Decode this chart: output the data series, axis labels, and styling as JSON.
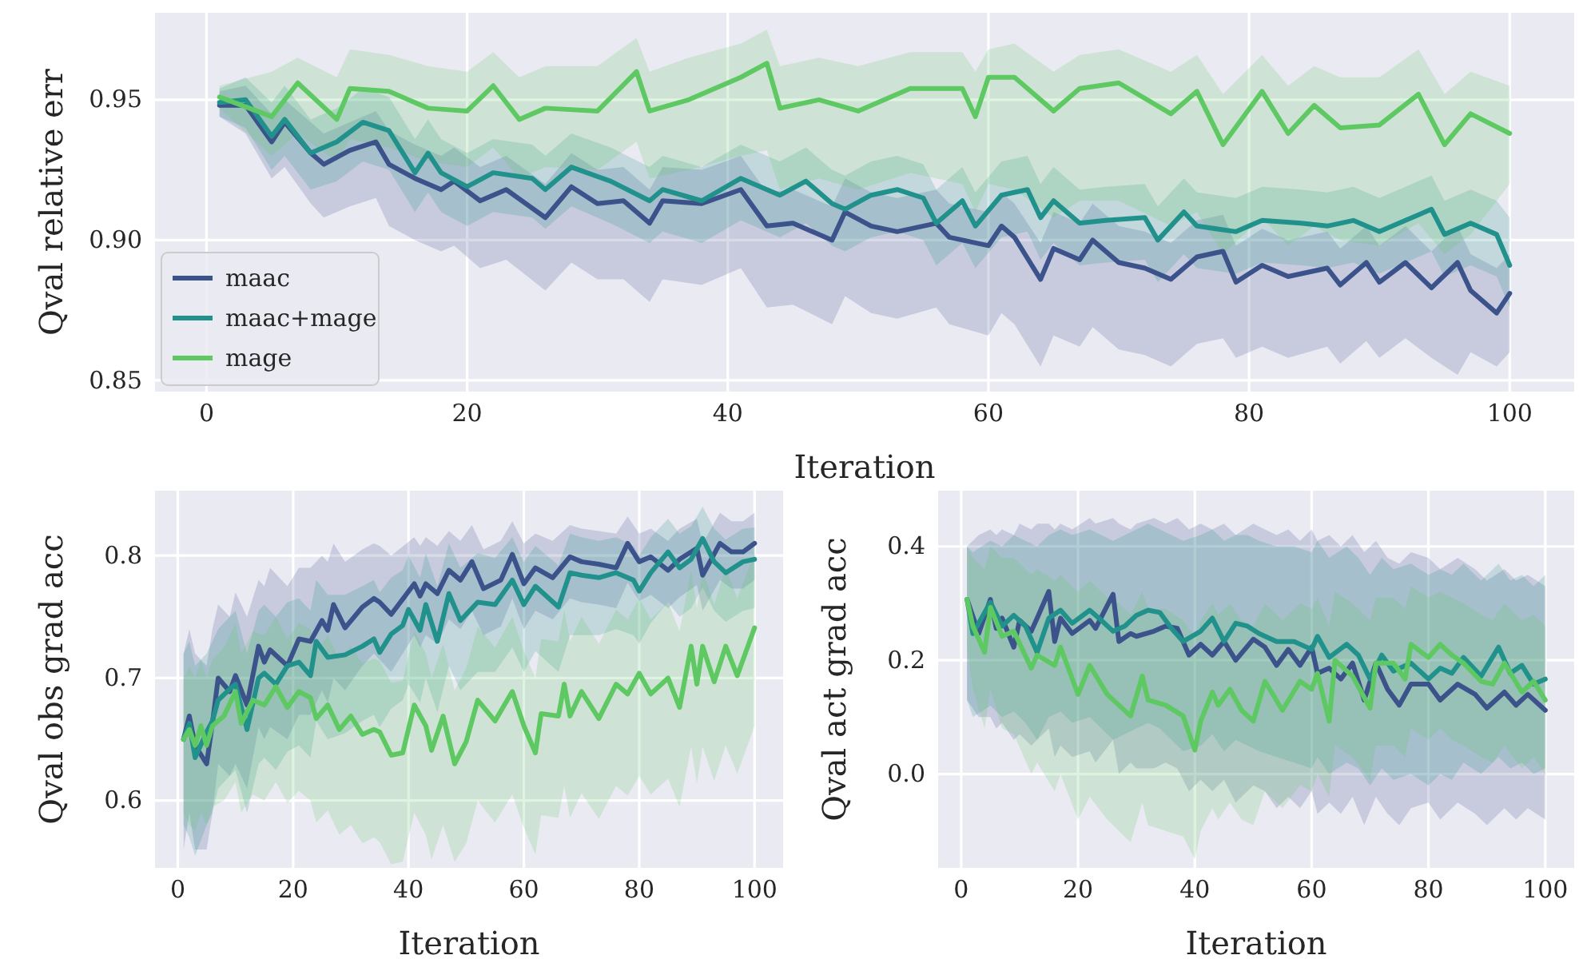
{
  "chart_data": [
    {
      "type": "line",
      "xlabel": "Iteration",
      "ylabel": "Qval relative err",
      "xlim": [
        -3.95,
        104.95
      ],
      "xticks": [
        0,
        20,
        40,
        60,
        80,
        100
      ],
      "ylim": [
        0.846,
        0.981
      ],
      "yticks": [
        {
          "value": 0.85,
          "label": "0.85"
        },
        {
          "value": 0.9,
          "label": "0.90"
        },
        {
          "value": 0.95,
          "label": "0.95"
        }
      ],
      "grid": true,
      "legend": "bottom left",
      "series": [
        {
          "name": "maac",
          "color": "#3b528b",
          "x": [
            1,
            3,
            5,
            6,
            8,
            9,
            11,
            13,
            14,
            16,
            18,
            19,
            21,
            23,
            26,
            28,
            30,
            32,
            34,
            35,
            38,
            41,
            43,
            45,
            48,
            49,
            51,
            53,
            56,
            57,
            60,
            61,
            62,
            64,
            65,
            67,
            68,
            70,
            72,
            74,
            76,
            78,
            79,
            81,
            83,
            86,
            87,
            89,
            90,
            92,
            94,
            96,
            97,
            99,
            100
          ],
          "values": [
            0.948,
            0.948,
            0.935,
            0.942,
            0.931,
            0.927,
            0.932,
            0.935,
            0.927,
            0.922,
            0.918,
            0.921,
            0.914,
            0.918,
            0.908,
            0.919,
            0.913,
            0.914,
            0.906,
            0.914,
            0.913,
            0.918,
            0.905,
            0.906,
            0.9,
            0.91,
            0.905,
            0.903,
            0.906,
            0.901,
            0.898,
            0.905,
            0.901,
            0.886,
            0.897,
            0.893,
            0.9,
            0.892,
            0.89,
            0.886,
            0.894,
            0.896,
            0.885,
            0.891,
            0.887,
            0.89,
            0.884,
            0.892,
            0.885,
            0.892,
            0.883,
            0.892,
            0.882,
            0.874,
            0.881
          ],
          "lower": [
            0.944,
            0.938,
            0.922,
            0.926,
            0.913,
            0.908,
            0.912,
            0.915,
            0.905,
            0.9,
            0.896,
            0.898,
            0.89,
            0.893,
            0.882,
            0.892,
            0.886,
            0.886,
            0.878,
            0.886,
            0.884,
            0.89,
            0.876,
            0.877,
            0.87,
            0.88,
            0.874,
            0.872,
            0.876,
            0.87,
            0.866,
            0.874,
            0.87,
            0.855,
            0.866,
            0.862,
            0.869,
            0.861,
            0.859,
            0.855,
            0.863,
            0.865,
            0.858,
            0.862,
            0.858,
            0.862,
            0.856,
            0.864,
            0.858,
            0.865,
            0.858,
            0.852,
            0.86,
            0.855,
            0.86
          ],
          "upper": [
            0.953,
            0.955,
            0.945,
            0.95,
            0.942,
            0.938,
            0.942,
            0.946,
            0.939,
            0.934,
            0.93,
            0.933,
            0.926,
            0.93,
            0.92,
            0.931,
            0.925,
            0.926,
            0.918,
            0.926,
            0.925,
            0.93,
            0.917,
            0.918,
            0.912,
            0.922,
            0.917,
            0.915,
            0.918,
            0.913,
            0.91,
            0.917,
            0.913,
            0.899,
            0.91,
            0.906,
            0.913,
            0.905,
            0.903,
            0.899,
            0.907,
            0.909,
            0.898,
            0.904,
            0.9,
            0.903,
            0.897,
            0.905,
            0.898,
            0.905,
            0.896,
            0.905,
            0.895,
            0.89,
            0.895
          ]
        },
        {
          "name": "maac+mage",
          "color": "#21918c",
          "x": [
            1,
            3,
            5,
            6,
            8,
            10,
            12,
            14,
            16,
            17,
            18,
            20,
            22,
            25,
            26,
            28,
            31,
            34,
            35,
            38,
            41,
            44,
            46,
            48,
            49,
            51,
            53,
            55,
            56,
            58,
            59,
            61,
            63,
            64,
            65,
            67,
            69,
            72,
            73,
            75,
            76,
            79,
            81,
            84,
            86,
            88,
            90,
            92,
            94,
            95,
            97,
            99,
            100
          ],
          "values": [
            0.949,
            0.95,
            0.937,
            0.943,
            0.931,
            0.935,
            0.942,
            0.939,
            0.924,
            0.931,
            0.924,
            0.919,
            0.924,
            0.922,
            0.918,
            0.926,
            0.921,
            0.914,
            0.918,
            0.914,
            0.922,
            0.916,
            0.921,
            0.913,
            0.911,
            0.916,
            0.918,
            0.915,
            0.906,
            0.914,
            0.905,
            0.916,
            0.918,
            0.908,
            0.914,
            0.906,
            0.907,
            0.908,
            0.9,
            0.91,
            0.905,
            0.903,
            0.907,
            0.906,
            0.905,
            0.907,
            0.903,
            0.907,
            0.911,
            0.902,
            0.906,
            0.902,
            0.891
          ],
          "lower": [
            0.944,
            0.94,
            0.925,
            0.93,
            0.918,
            0.921,
            0.928,
            0.925,
            0.91,
            0.917,
            0.91,
            0.905,
            0.91,
            0.908,
            0.904,
            0.912,
            0.906,
            0.899,
            0.903,
            0.899,
            0.907,
            0.901,
            0.906,
            0.898,
            0.896,
            0.901,
            0.903,
            0.9,
            0.891,
            0.899,
            0.89,
            0.901,
            0.903,
            0.893,
            0.899,
            0.891,
            0.892,
            0.893,
            0.885,
            0.895,
            0.89,
            0.888,
            0.892,
            0.891,
            0.89,
            0.892,
            0.888,
            0.892,
            0.896,
            0.887,
            0.891,
            0.887,
            0.876
          ],
          "upper": [
            0.954,
            0.958,
            0.949,
            0.955,
            0.943,
            0.947,
            0.954,
            0.951,
            0.936,
            0.943,
            0.936,
            0.931,
            0.936,
            0.934,
            0.93,
            0.938,
            0.933,
            0.926,
            0.93,
            0.926,
            0.934,
            0.928,
            0.933,
            0.925,
            0.923,
            0.928,
            0.93,
            0.927,
            0.918,
            0.926,
            0.917,
            0.928,
            0.93,
            0.92,
            0.926,
            0.918,
            0.919,
            0.92,
            0.912,
            0.922,
            0.917,
            0.915,
            0.919,
            0.918,
            0.917,
            0.919,
            0.915,
            0.919,
            0.923,
            0.914,
            0.918,
            0.914,
            0.908
          ]
        },
        {
          "name": "mage",
          "color": "#5ec962",
          "x": [
            1,
            5,
            7,
            10,
            11,
            14,
            17,
            20,
            22,
            24,
            26,
            30,
            33,
            34,
            37,
            41,
            43,
            44,
            47,
            50,
            54,
            58,
            59,
            60,
            62,
            65,
            67,
            70,
            74,
            76,
            78,
            81,
            83,
            85,
            87,
            90,
            93,
            95,
            97,
            100
          ],
          "values": [
            0.951,
            0.944,
            0.956,
            0.943,
            0.954,
            0.953,
            0.947,
            0.946,
            0.955,
            0.943,
            0.947,
            0.946,
            0.96,
            0.946,
            0.95,
            0.958,
            0.963,
            0.947,
            0.95,
            0.946,
            0.954,
            0.954,
            0.944,
            0.958,
            0.958,
            0.946,
            0.954,
            0.956,
            0.945,
            0.953,
            0.934,
            0.953,
            0.938,
            0.948,
            0.94,
            0.941,
            0.952,
            0.934,
            0.945,
            0.938
          ],
          "lower": [
            0.947,
            0.93,
            0.938,
            0.928,
            0.936,
            0.933,
            0.928,
            0.926,
            0.933,
            0.922,
            0.926,
            0.925,
            0.935,
            0.922,
            0.925,
            0.93,
            0.932,
            0.918,
            0.922,
            0.918,
            0.924,
            0.92,
            0.91,
            0.92,
            0.918,
            0.908,
            0.914,
            0.914,
            0.905,
            0.91,
            0.895,
            0.908,
            0.898,
            0.905,
            0.9,
            0.898,
            0.906,
            0.895,
            0.902,
            0.92
          ],
          "upper": [
            0.955,
            0.96,
            0.965,
            0.958,
            0.968,
            0.966,
            0.962,
            0.96,
            0.967,
            0.958,
            0.962,
            0.962,
            0.972,
            0.96,
            0.965,
            0.97,
            0.975,
            0.962,
            0.965,
            0.962,
            0.967,
            0.967,
            0.96,
            0.968,
            0.97,
            0.96,
            0.966,
            0.968,
            0.96,
            0.966,
            0.952,
            0.966,
            0.955,
            0.962,
            0.958,
            0.958,
            0.968,
            0.952,
            0.96,
            0.955
          ]
        }
      ]
    },
    {
      "type": "line",
      "xlabel": "Iteration",
      "ylabel": "Qval obs grad acc",
      "xlim": [
        -3.95,
        104.95
      ],
      "xticks": [
        0,
        20,
        40,
        60,
        80,
        100
      ],
      "ylim": [
        0.545,
        0.853
      ],
      "yticks": [
        0.6,
        0.7,
        0.8
      ],
      "grid": true,
      "series": [
        {
          "color": "#3b528b",
          "x": [
            1,
            2,
            3,
            5,
            6,
            7,
            9,
            10,
            12,
            14,
            15,
            16,
            19,
            21,
            23,
            25,
            26,
            27,
            29,
            32,
            34,
            35,
            37,
            41,
            42,
            43,
            45,
            47,
            49,
            51,
            53,
            56,
            58,
            60,
            62,
            65,
            68,
            70,
            73,
            76,
            78,
            80,
            82,
            85,
            87,
            90,
            91,
            94,
            96,
            98,
            100
          ],
          "values": [
            0.65,
            0.669,
            0.645,
            0.63,
            0.663,
            0.7,
            0.689,
            0.702,
            0.678,
            0.726,
            0.713,
            0.723,
            0.71,
            0.732,
            0.73,
            0.747,
            0.739,
            0.76,
            0.741,
            0.758,
            0.765,
            0.762,
            0.752,
            0.777,
            0.767,
            0.777,
            0.769,
            0.788,
            0.78,
            0.795,
            0.773,
            0.78,
            0.801,
            0.777,
            0.79,
            0.782,
            0.799,
            0.795,
            0.793,
            0.79,
            0.81,
            0.795,
            0.799,
            0.788,
            0.797,
            0.806,
            0.784,
            0.81,
            0.803,
            0.803,
            0.81
          ],
          "upper": [
            0.72,
            0.74,
            0.72,
            0.71,
            0.74,
            0.76,
            0.75,
            0.77,
            0.75,
            0.78,
            0.775,
            0.79,
            0.775,
            0.79,
            0.79,
            0.8,
            0.795,
            0.81,
            0.795,
            0.805,
            0.81,
            0.808,
            0.8,
            0.815,
            0.808,
            0.815,
            0.808,
            0.82,
            0.812,
            0.825,
            0.805,
            0.812,
            0.828,
            0.81,
            0.818,
            0.812,
            0.825,
            0.822,
            0.82,
            0.818,
            0.832,
            0.818,
            0.822,
            0.812,
            0.822,
            0.83,
            0.81,
            0.835,
            0.828,
            0.828,
            0.835
          ],
          "lower": [
            0.56,
            0.59,
            0.56,
            0.56,
            0.59,
            0.63,
            0.62,
            0.63,
            0.61,
            0.66,
            0.65,
            0.66,
            0.65,
            0.67,
            0.67,
            0.69,
            0.68,
            0.7,
            0.69,
            0.71,
            0.72,
            0.715,
            0.705,
            0.735,
            0.725,
            0.735,
            0.728,
            0.748,
            0.74,
            0.755,
            0.735,
            0.742,
            0.765,
            0.74,
            0.755,
            0.748,
            0.765,
            0.762,
            0.76,
            0.757,
            0.778,
            0.763,
            0.768,
            0.757,
            0.766,
            0.776,
            0.755,
            0.78,
            0.773,
            0.773,
            0.78
          ]
        },
        {
          "color": "#21918c",
          "x": [
            1,
            2,
            3,
            5,
            6,
            7,
            9,
            10,
            12,
            14,
            15,
            17,
            19,
            21,
            23,
            24,
            26,
            29,
            32,
            34,
            35,
            37,
            39,
            40,
            42,
            43,
            45,
            47,
            49,
            52,
            55,
            58,
            60,
            62,
            66,
            68,
            70,
            73,
            76,
            79,
            80,
            82,
            85,
            87,
            89,
            91,
            93,
            95,
            98,
            100
          ],
          "values": [
            0.65,
            0.663,
            0.635,
            0.656,
            0.665,
            0.682,
            0.691,
            0.695,
            0.658,
            0.7,
            0.704,
            0.695,
            0.71,
            0.713,
            0.702,
            0.73,
            0.717,
            0.719,
            0.726,
            0.732,
            0.721,
            0.736,
            0.743,
            0.756,
            0.739,
            0.76,
            0.73,
            0.769,
            0.747,
            0.762,
            0.76,
            0.78,
            0.76,
            0.775,
            0.758,
            0.786,
            0.784,
            0.782,
            0.786,
            0.78,
            0.771,
            0.786,
            0.803,
            0.79,
            0.797,
            0.814,
            0.795,
            0.786,
            0.795,
            0.797
          ],
          "upper": [
            0.72,
            0.73,
            0.71,
            0.72,
            0.73,
            0.74,
            0.75,
            0.755,
            0.72,
            0.755,
            0.76,
            0.75,
            0.762,
            0.765,
            0.755,
            0.78,
            0.768,
            0.768,
            0.775,
            0.78,
            0.77,
            0.782,
            0.788,
            0.8,
            0.782,
            0.802,
            0.775,
            0.81,
            0.79,
            0.802,
            0.798,
            0.815,
            0.795,
            0.808,
            0.792,
            0.818,
            0.815,
            0.812,
            0.815,
            0.808,
            0.8,
            0.815,
            0.83,
            0.818,
            0.824,
            0.84,
            0.822,
            0.813,
            0.822,
            0.823
          ],
          "lower": [
            0.58,
            0.57,
            0.555,
            0.58,
            0.59,
            0.61,
            0.62,
            0.625,
            0.59,
            0.63,
            0.635,
            0.625,
            0.64,
            0.645,
            0.635,
            0.665,
            0.65,
            0.655,
            0.665,
            0.67,
            0.66,
            0.675,
            0.682,
            0.695,
            0.68,
            0.7,
            0.672,
            0.71,
            0.69,
            0.705,
            0.705,
            0.725,
            0.705,
            0.722,
            0.705,
            0.735,
            0.735,
            0.735,
            0.74,
            0.735,
            0.728,
            0.745,
            0.762,
            0.75,
            0.757,
            0.774,
            0.755,
            0.746,
            0.755,
            0.757
          ]
        },
        {
          "color": "#5ec962",
          "x": [
            1,
            2,
            3,
            4,
            5,
            6,
            8,
            10,
            11,
            13,
            15,
            17,
            19,
            21,
            23,
            24,
            26,
            28,
            30,
            32,
            34,
            35,
            37,
            39,
            41,
            43,
            44,
            46,
            48,
            50,
            52,
            55,
            58,
            60,
            62,
            63,
            66,
            67,
            68,
            70,
            73,
            76,
            78,
            80,
            82,
            85,
            87,
            89,
            90,
            91,
            93,
            95,
            97,
            99,
            100
          ],
          "values": [
            0.65,
            0.658,
            0.645,
            0.661,
            0.645,
            0.661,
            0.669,
            0.689,
            0.663,
            0.682,
            0.678,
            0.693,
            0.676,
            0.689,
            0.684,
            0.667,
            0.678,
            0.658,
            0.669,
            0.654,
            0.658,
            0.656,
            0.637,
            0.639,
            0.678,
            0.661,
            0.641,
            0.669,
            0.63,
            0.648,
            0.682,
            0.665,
            0.689,
            0.661,
            0.639,
            0.671,
            0.669,
            0.695,
            0.669,
            0.689,
            0.667,
            0.695,
            0.687,
            0.704,
            0.687,
            0.7,
            0.676,
            0.726,
            0.695,
            0.726,
            0.697,
            0.726,
            0.702,
            0.728,
            0.741
          ],
          "upper": [
            0.7,
            0.71,
            0.7,
            0.715,
            0.7,
            0.715,
            0.725,
            0.745,
            0.72,
            0.738,
            0.735,
            0.75,
            0.732,
            0.745,
            0.74,
            0.722,
            0.735,
            0.715,
            0.726,
            0.712,
            0.716,
            0.714,
            0.696,
            0.698,
            0.738,
            0.72,
            0.7,
            0.728,
            0.69,
            0.708,
            0.742,
            0.725,
            0.75,
            0.722,
            0.7,
            0.732,
            0.73,
            0.756,
            0.73,
            0.75,
            0.728,
            0.756,
            0.748,
            0.765,
            0.748,
            0.762,
            0.738,
            0.788,
            0.757,
            0.788,
            0.76,
            0.79,
            0.765,
            0.79,
            0.8
          ],
          "lower": [
            0.59,
            0.58,
            0.575,
            0.59,
            0.58,
            0.595,
            0.6,
            0.615,
            0.59,
            0.605,
            0.6,
            0.615,
            0.598,
            0.608,
            0.6,
            0.582,
            0.592,
            0.572,
            0.58,
            0.565,
            0.57,
            0.566,
            0.548,
            0.55,
            0.59,
            0.572,
            0.552,
            0.58,
            0.55,
            0.565,
            0.6,
            0.582,
            0.605,
            0.578,
            0.556,
            0.588,
            0.586,
            0.612,
            0.586,
            0.606,
            0.585,
            0.612,
            0.604,
            0.62,
            0.605,
            0.618,
            0.595,
            0.644,
            0.614,
            0.644,
            0.616,
            0.645,
            0.622,
            0.648,
            0.661
          ]
        }
      ]
    },
    {
      "type": "line",
      "xlabel": "Iteration",
      "ylabel": "Qval act grad acc",
      "xlim": [
        -3.95,
        104.95
      ],
      "xticks": [
        0,
        20,
        40,
        60,
        80,
        100
      ],
      "ylim": [
        -0.165,
        0.498
      ],
      "yticks": [
        {
          "value": 0,
          "label": "0.0"
        },
        0.2,
        0.4
      ],
      "grid": true,
      "series": [
        {
          "color": "#3b528b",
          "x": [
            1,
            3,
            5,
            6,
            7,
            9,
            10,
            12,
            13,
            15,
            16,
            17,
            19,
            22,
            23,
            26,
            27,
            29,
            30,
            33,
            35,
            37,
            39,
            41,
            43,
            45,
            47,
            50,
            52,
            54,
            56,
            58,
            60,
            61,
            63,
            65,
            67,
            69,
            71,
            73,
            75,
            77,
            80,
            82,
            85,
            88,
            90,
            93,
            95,
            97,
            100
          ],
          "values": [
            0.307,
            0.247,
            0.307,
            0.256,
            0.274,
            0.223,
            0.27,
            0.251,
            0.274,
            0.321,
            0.233,
            0.274,
            0.247,
            0.27,
            0.256,
            0.316,
            0.233,
            0.247,
            0.242,
            0.251,
            0.26,
            0.256,
            0.209,
            0.228,
            0.209,
            0.233,
            0.2,
            0.237,
            0.223,
            0.191,
            0.219,
            0.191,
            0.223,
            0.177,
            0.186,
            0.167,
            0.195,
            0.13,
            0.195,
            0.149,
            0.121,
            0.158,
            0.158,
            0.13,
            0.158,
            0.14,
            0.116,
            0.144,
            0.121,
            0.14,
            0.112
          ],
          "upper": [
            0.4,
            0.42,
            0.43,
            0.42,
            0.43,
            0.42,
            0.44,
            0.43,
            0.44,
            0.44,
            0.43,
            0.44,
            0.43,
            0.45,
            0.44,
            0.45,
            0.44,
            0.43,
            0.44,
            0.45,
            0.44,
            0.45,
            0.43,
            0.44,
            0.43,
            0.44,
            0.42,
            0.44,
            0.43,
            0.42,
            0.43,
            0.41,
            0.43,
            0.41,
            0.42,
            0.4,
            0.42,
            0.39,
            0.41,
            0.38,
            0.37,
            0.39,
            0.38,
            0.36,
            0.38,
            0.36,
            0.34,
            0.36,
            0.34,
            0.35,
            0.33
          ],
          "lower": [
            0.13,
            0.1,
            0.1,
            0.08,
            0.09,
            0.06,
            0.07,
            0.05,
            0.06,
            0.08,
            0.03,
            0.05,
            0.03,
            0.04,
            0.02,
            0.06,
            0.0,
            0.02,
            0.01,
            0.01,
            0.02,
            0.01,
            -0.03,
            -0.01,
            -0.03,
            -0.01,
            -0.05,
            -0.02,
            -0.03,
            -0.06,
            -0.04,
            -0.06,
            -0.03,
            -0.07,
            -0.05,
            -0.07,
            -0.04,
            -0.09,
            -0.04,
            -0.07,
            -0.09,
            -0.06,
            -0.05,
            -0.08,
            -0.05,
            -0.07,
            -0.09,
            -0.06,
            -0.08,
            -0.06,
            -0.08
          ]
        },
        {
          "color": "#21918c",
          "x": [
            1,
            2,
            5,
            7,
            9,
            11,
            13,
            15,
            17,
            19,
            22,
            24,
            26,
            28,
            30,
            32,
            34,
            36,
            38,
            41,
            43,
            45,
            47,
            49,
            51,
            54,
            57,
            60,
            61,
            63,
            66,
            68,
            70,
            72,
            74,
            77,
            80,
            82,
            84,
            86,
            89,
            92,
            94,
            96,
            98,
            100
          ],
          "values": [
            0.307,
            0.247,
            0.302,
            0.26,
            0.279,
            0.26,
            0.214,
            0.274,
            0.288,
            0.265,
            0.288,
            0.27,
            0.251,
            0.26,
            0.279,
            0.288,
            0.284,
            0.256,
            0.233,
            0.251,
            0.274,
            0.233,
            0.265,
            0.26,
            0.247,
            0.233,
            0.233,
            0.219,
            0.242,
            0.205,
            0.228,
            0.209,
            0.167,
            0.209,
            0.181,
            0.195,
            0.167,
            0.186,
            0.177,
            0.205,
            0.172,
            0.223,
            0.177,
            0.191,
            0.158,
            0.167
          ],
          "upper": [
            0.4,
            0.39,
            0.41,
            0.4,
            0.42,
            0.41,
            0.4,
            0.42,
            0.43,
            0.42,
            0.43,
            0.42,
            0.41,
            0.42,
            0.43,
            0.44,
            0.43,
            0.42,
            0.41,
            0.42,
            0.43,
            0.41,
            0.42,
            0.42,
            0.41,
            0.4,
            0.4,
            0.39,
            0.41,
            0.38,
            0.4,
            0.38,
            0.35,
            0.38,
            0.36,
            0.37,
            0.35,
            0.36,
            0.35,
            0.37,
            0.34,
            0.37,
            0.34,
            0.35,
            0.33,
            0.35
          ],
          "lower": [
            0.13,
            0.1,
            0.12,
            0.1,
            0.11,
            0.09,
            0.06,
            0.1,
            0.11,
            0.09,
            0.1,
            0.08,
            0.06,
            0.07,
            0.08,
            0.09,
            0.08,
            0.06,
            0.04,
            0.05,
            0.07,
            0.04,
            0.06,
            0.05,
            0.04,
            0.03,
            0.02,
            0.01,
            0.03,
            0.0,
            0.02,
            0.01,
            -0.02,
            0.01,
            -0.01,
            0.0,
            -0.02,
            0.0,
            -0.01,
            0.02,
            0.0,
            0.03,
            0.01,
            0.02,
            0.0,
            0.01
          ]
        },
        {
          "color": "#5ec962",
          "x": [
            1,
            2,
            4,
            5,
            7,
            9,
            12,
            13,
            16,
            17,
            20,
            22,
            25,
            27,
            29,
            31,
            32,
            35,
            38,
            40,
            41,
            43,
            44,
            46,
            48,
            50,
            52,
            55,
            58,
            60,
            61,
            63,
            64,
            67,
            70,
            71,
            74,
            76,
            77,
            80,
            82,
            84,
            86,
            89,
            91,
            93,
            96,
            98,
            100
          ],
          "values": [
            0.307,
            0.26,
            0.214,
            0.293,
            0.242,
            0.251,
            0.186,
            0.209,
            0.191,
            0.223,
            0.14,
            0.191,
            0.14,
            0.121,
            0.102,
            0.172,
            0.13,
            0.121,
            0.102,
            0.042,
            0.093,
            0.144,
            0.121,
            0.149,
            0.112,
            0.093,
            0.163,
            0.112,
            0.163,
            0.149,
            0.177,
            0.093,
            0.2,
            0.172,
            0.116,
            0.195,
            0.195,
            0.167,
            0.228,
            0.205,
            0.228,
            0.209,
            0.195,
            0.163,
            0.158,
            0.195,
            0.144,
            0.163,
            0.13
          ],
          "upper": [
            0.4,
            0.38,
            0.36,
            0.4,
            0.38,
            0.38,
            0.35,
            0.36,
            0.34,
            0.35,
            0.32,
            0.34,
            0.31,
            0.3,
            0.28,
            0.32,
            0.29,
            0.29,
            0.27,
            0.24,
            0.27,
            0.3,
            0.28,
            0.3,
            0.27,
            0.26,
            0.3,
            0.27,
            0.3,
            0.29,
            0.31,
            0.26,
            0.32,
            0.3,
            0.27,
            0.31,
            0.31,
            0.29,
            0.33,
            0.31,
            0.32,
            0.31,
            0.3,
            0.28,
            0.27,
            0.3,
            0.27,
            0.28,
            0.26
          ],
          "lower": [
            0.22,
            0.15,
            0.08,
            0.15,
            0.08,
            0.07,
            0.0,
            0.02,
            -0.03,
            0.0,
            -0.08,
            -0.04,
            -0.08,
            -0.1,
            -0.12,
            -0.05,
            -0.09,
            -0.1,
            -0.11,
            -0.15,
            -0.1,
            -0.06,
            -0.08,
            -0.05,
            -0.08,
            -0.09,
            -0.03,
            -0.06,
            -0.02,
            -0.03,
            0.0,
            -0.04,
            0.05,
            0.03,
            -0.01,
            0.05,
            0.05,
            0.03,
            0.08,
            0.06,
            0.08,
            0.06,
            0.05,
            0.03,
            0.02,
            0.05,
            0.01,
            0.03,
            0.0
          ]
        }
      ]
    }
  ]
}
